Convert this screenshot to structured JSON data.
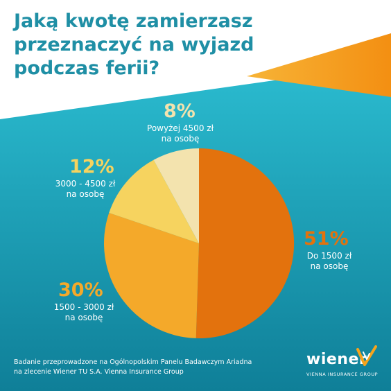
{
  "title": {
    "line1": "Jaką kwotę zamierzasz",
    "line2": "przeznaczyć na wyjazd",
    "line3": "podczas ferii?"
  },
  "colors": {
    "title": "#1f8fa5",
    "background_top": "#ffffff",
    "background_teal_light": "#2bbcd0",
    "background_teal_dark": "#0f7f98",
    "accent_orange": "#f59c1a",
    "slice_51": "#e3720d",
    "slice_30": "#f4a92a",
    "slice_12": "#f6d35f",
    "slice_8": "#f3e3ae"
  },
  "chart_data": {
    "type": "pie",
    "title": "Jaką kwotę zamierzasz przeznaczyć na wyjazd podczas ferii?",
    "unit": "%",
    "slices": [
      {
        "label_line1": "Do 1500 zł",
        "label_line2": "na osobę",
        "value": 51,
        "value_label": "51%",
        "color": "#e3720d",
        "label_color": "#e3720d"
      },
      {
        "label_line1": "1500 - 3000 zł",
        "label_line2": "na osobę",
        "value": 30,
        "value_label": "30%",
        "color": "#f4a92a",
        "label_color": "#f4a92a"
      },
      {
        "label_line1": "3000 - 4500 zł",
        "label_line2": "na osobę",
        "value": 12,
        "value_label": "12%",
        "color": "#f6d35f",
        "label_color": "#f6d35f"
      },
      {
        "label_line1": "Powyżej 4500 zł",
        "label_line2": "na osobę",
        "value": 8,
        "value_label": "8%",
        "color": "#f3e3ae",
        "label_color": "#f3e3ae"
      }
    ]
  },
  "footnote": {
    "line1": "Badanie przeprowadzone na Ogólnopolskim Panelu Badawczym Ariadna",
    "line2": "na zlecenie Wiener TU S.A. Vienna Insurance Group"
  },
  "brand": {
    "wordmark": "wiener",
    "tagline": "VIENNA INSURANCE GROUP"
  }
}
